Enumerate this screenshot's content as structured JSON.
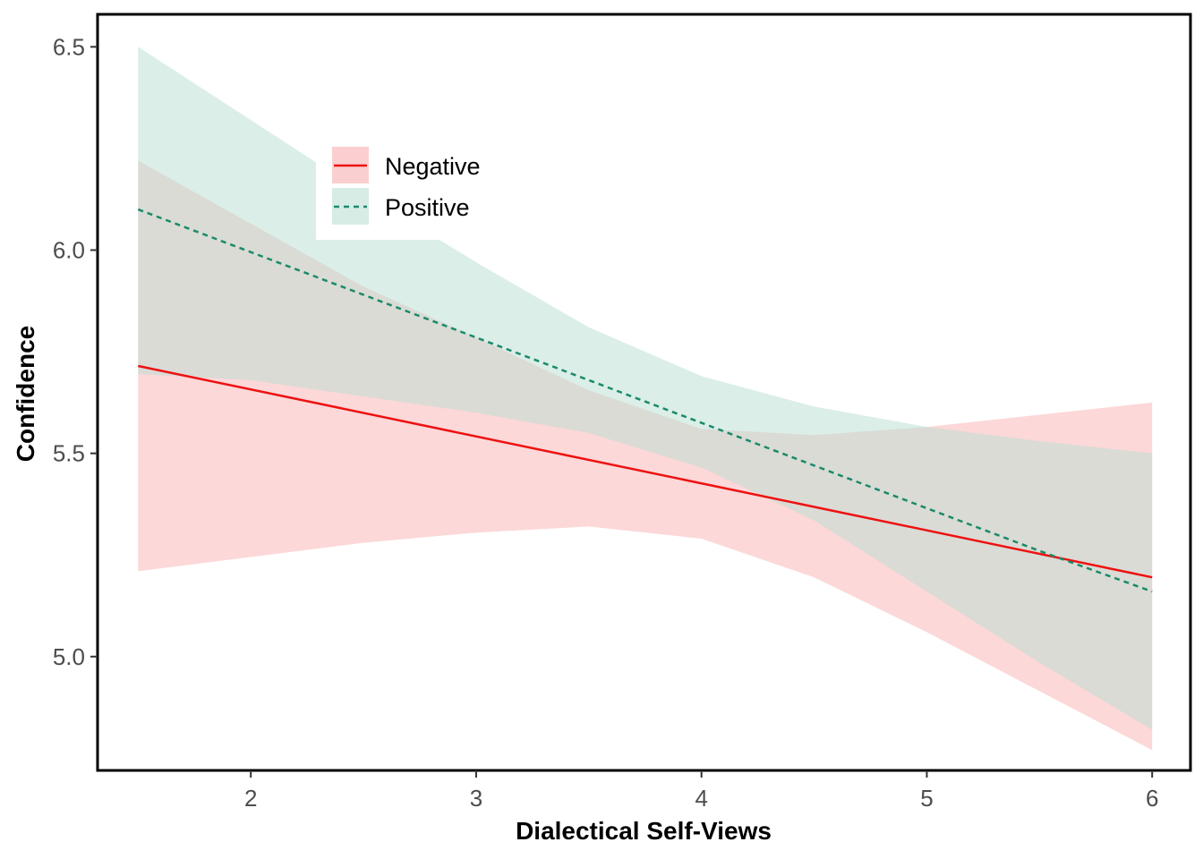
{
  "chart_data": {
    "type": "line",
    "xlabel": "Dialectical Self-Views",
    "ylabel": "Confidence",
    "xlim": [
      1.32,
      6.17
    ],
    "ylim": [
      4.72,
      6.58
    ],
    "x_ticks": [
      2,
      3,
      4,
      5,
      6
    ],
    "y_ticks": [
      5.0,
      5.5,
      6.0,
      6.5
    ],
    "x_tick_labels": [
      "2",
      "3",
      "4",
      "5",
      "6"
    ],
    "y_tick_labels": [
      "5.0",
      "5.5",
      "6.0",
      "6.5"
    ],
    "grid": false,
    "legend_position": "top-left inside",
    "series": [
      {
        "name": "Negative",
        "color": "#ee1111",
        "fill": "#f8a8a8",
        "line_style": "solid",
        "x": [
          1.5,
          6.0
        ],
        "y": [
          5.715,
          5.195
        ],
        "band_x": [
          1.5,
          2.0,
          2.5,
          3.0,
          3.5,
          4.0,
          4.5,
          5.0,
          5.5,
          6.0
        ],
        "band_lower": [
          5.21,
          5.245,
          5.28,
          5.305,
          5.32,
          5.29,
          5.195,
          5.06,
          4.915,
          4.77
        ],
        "band_upper": [
          6.22,
          6.065,
          5.91,
          5.785,
          5.655,
          5.56,
          5.545,
          5.565,
          5.595,
          5.625
        ]
      },
      {
        "name": "Positive",
        "color": "#1a8a6a",
        "fill": "#b8ddd2",
        "line_style": "dashed",
        "x": [
          1.5,
          2.0,
          2.5,
          3.0,
          3.5,
          4.0,
          4.5,
          5.0,
          5.5,
          6.0
        ],
        "y": [
          6.1,
          5.995,
          5.89,
          5.785,
          5.68,
          5.575,
          5.47,
          5.365,
          5.26,
          5.16
        ],
        "band_x": [
          1.5,
          2.0,
          2.5,
          3.0,
          3.5,
          4.0,
          4.5,
          5.0,
          5.5,
          6.0
        ],
        "band_lower": [
          5.695,
          5.68,
          5.64,
          5.6,
          5.55,
          5.465,
          5.335,
          5.16,
          4.985,
          4.82
        ],
        "band_upper": [
          6.5,
          6.32,
          6.14,
          5.97,
          5.81,
          5.69,
          5.615,
          5.565,
          5.53,
          5.5
        ]
      }
    ]
  }
}
